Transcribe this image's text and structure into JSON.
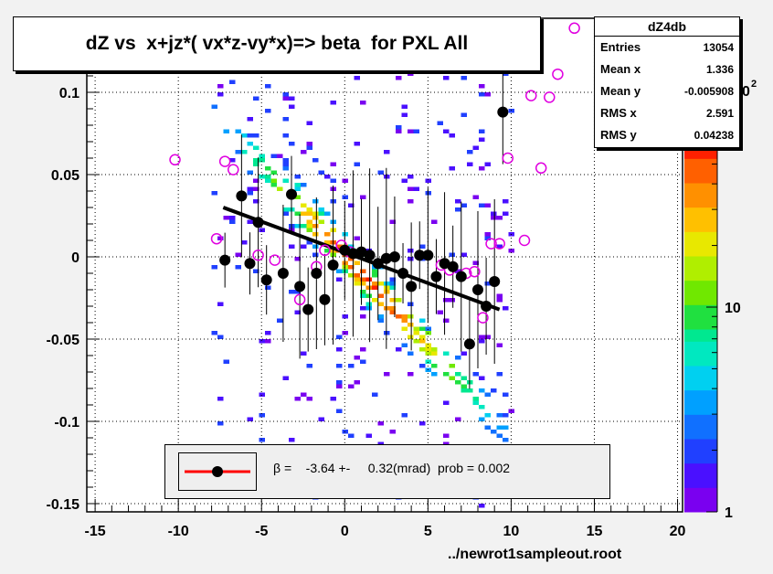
{
  "title": "dZ vs  x+jz*( vx*z-vy*x)=> beta  for PXL All",
  "stats": {
    "name": "dZ4db",
    "rows": [
      {
        "label": "Entries",
        "value": "13054"
      },
      {
        "label": "Mean x",
        "value": "1.336"
      },
      {
        "label": "Mean y",
        "value": "-0.005908"
      },
      {
        "label": "RMS x",
        "value": "2.591"
      },
      {
        "label": "RMS y",
        "value": "0.04238"
      }
    ]
  },
  "legend": {
    "text": "β =    -3.64 +-     0.32(mrad)  prob = 0.002"
  },
  "footer": "../newrot1sampleout.root",
  "colorbar": {
    "labels": [
      "1",
      "10",
      "10"
    ],
    "exponent": "2"
  },
  "colors": {
    "profile_points": "#000000",
    "empty_markers": "#e000e0",
    "fit_line": "#000000",
    "legend_line": "#ff0000"
  },
  "chart_data": {
    "type": "scatter",
    "title": "dZ vs  x+jz*( vx*z-vy*x)=> beta  for PXL All",
    "xlim": [
      -15.5,
      20.3
    ],
    "ylim": [
      -0.155,
      0.145
    ],
    "xticks": [
      "-15",
      "-10",
      "-5",
      "0",
      "5",
      "10",
      "15",
      "20"
    ],
    "yticks": [
      "-0.15",
      "-0.1",
      "-0.05",
      "0",
      "0.05",
      "0.1"
    ],
    "grid": true,
    "z_scale": "log",
    "fit": {
      "type": "line",
      "x": [
        -7.3,
        9.3
      ],
      "y": [
        0.03,
        -0.032
      ]
    },
    "profile": {
      "x": [
        -7.2,
        -6.2,
        -5.7,
        -5.2,
        -4.7,
        -3.7,
        -3.2,
        -2.7,
        -2.2,
        -1.7,
        -1.2,
        -0.7,
        0.0,
        0.5,
        1.0,
        1.5,
        2.0,
        2.5,
        3.0,
        3.5,
        4.0,
        4.5,
        5.0,
        5.5,
        6.0,
        6.5,
        7.0,
        7.5,
        8.0,
        8.5,
        9.0,
        9.5
      ],
      "y": [
        -0.002,
        0.037,
        -0.004,
        0.021,
        -0.014,
        -0.01,
        0.038,
        -0.018,
        -0.032,
        -0.01,
        -0.026,
        -0.005,
        0.004,
        0.002,
        0.003,
        0.001,
        -0.004,
        -0.001,
        0.0,
        -0.01,
        -0.018,
        0.001,
        0.001,
        -0.012,
        -0.004,
        -0.006,
        -0.012,
        -0.053,
        -0.02,
        -0.03,
        -0.015,
        0.088
      ]
    },
    "empty_points": {
      "x": [
        -10.2,
        -8.7,
        -7.7,
        -7.2,
        -6.7,
        -5.2,
        -4.2,
        -2.7,
        -1.7,
        -1.2,
        -0.2,
        0.3,
        5.8,
        6.3,
        7.3,
        7.8,
        8.3,
        8.8,
        9.3,
        9.8,
        10.3,
        10.8,
        11.2,
        11.8,
        12.3,
        12.8,
        13.8
      ],
      "y": [
        0.059,
        0.119,
        0.011,
        0.058,
        0.053,
        0.001,
        -0.002,
        -0.026,
        -0.006,
        0.004,
        0.007,
        0.003,
        -0.005,
        -0.008,
        -0.01,
        -0.009,
        -0.037,
        0.008,
        0.008,
        0.06,
        0.126,
        0.01,
        0.098,
        0.054,
        0.097,
        0.111,
        0.139
      ]
    }
  }
}
